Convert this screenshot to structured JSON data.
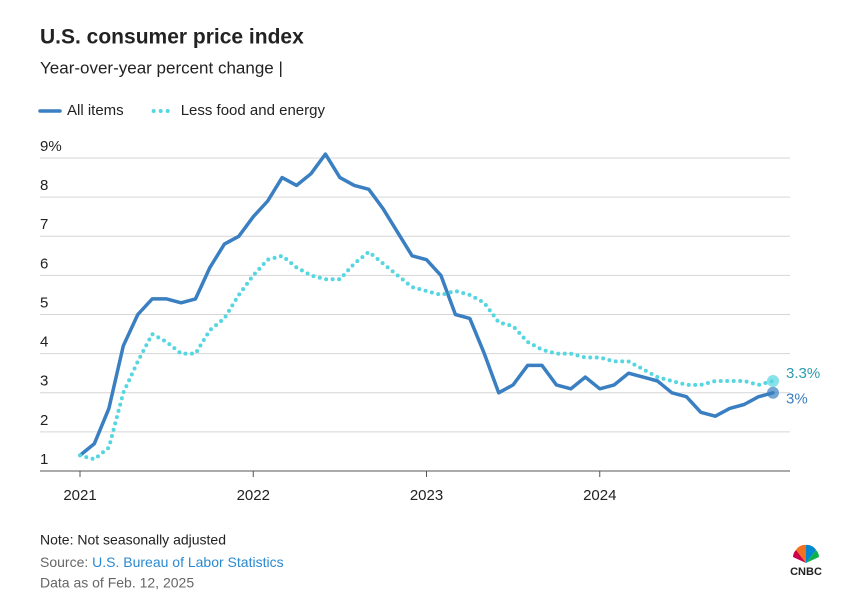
{
  "chart_data": {
    "type": "line",
    "title": "U.S. consumer price index",
    "subtitle": "Year-over-year percent change |",
    "categories": [
      "2021",
      null,
      null,
      null,
      null,
      null,
      null,
      null,
      null,
      null,
      null,
      null,
      "2022",
      null,
      null,
      null,
      null,
      null,
      null,
      null,
      null,
      null,
      null,
      null,
      "2023",
      null,
      null,
      null,
      null,
      null,
      null,
      null,
      null,
      null,
      null,
      null,
      "2024",
      null,
      null,
      null,
      null,
      null,
      null,
      null,
      null,
      null,
      null,
      null,
      null
    ],
    "series": [
      {
        "name": "All items",
        "color": "#3a7fc1",
        "style": "solid",
        "values": [
          1.4,
          1.7,
          2.6,
          4.2,
          5.0,
          5.4,
          5.4,
          5.3,
          5.4,
          6.2,
          6.8,
          7.0,
          7.5,
          7.9,
          8.5,
          8.3,
          8.6,
          9.1,
          8.5,
          8.3,
          8.2,
          7.7,
          7.1,
          6.5,
          6.4,
          6.0,
          5.0,
          4.9,
          4.0,
          3.0,
          3.2,
          3.7,
          3.7,
          3.2,
          3.1,
          3.4,
          3.1,
          3.2,
          3.5,
          3.4,
          3.3,
          3.0,
          2.9,
          2.5,
          2.4,
          2.6,
          2.7,
          2.9,
          3.0
        ],
        "value_labels": [
          null,
          null,
          null,
          null,
          null,
          null,
          null,
          null,
          null,
          null,
          null,
          null,
          null,
          null,
          null,
          null,
          null,
          null,
          null,
          null,
          null,
          null,
          null,
          null,
          null,
          null,
          null,
          null,
          null,
          null,
          null,
          null,
          null,
          null,
          null,
          null,
          null,
          null,
          null,
          null,
          null,
          null,
          null,
          null,
          null,
          null,
          null,
          null,
          "3%"
        ]
      },
      {
        "name": "Less food and energy",
        "color": "#55d6e0",
        "style": "dotted",
        "values": [
          1.4,
          1.3,
          1.6,
          3.0,
          3.8,
          4.5,
          4.3,
          4.0,
          4.0,
          4.6,
          4.9,
          5.5,
          6.0,
          6.4,
          6.5,
          6.2,
          6.0,
          5.9,
          5.9,
          6.3,
          6.6,
          6.3,
          6.0,
          5.7,
          5.6,
          5.5,
          5.6,
          5.5,
          5.3,
          4.8,
          4.7,
          4.3,
          4.1,
          4.0,
          4.0,
          3.9,
          3.9,
          3.8,
          3.8,
          3.6,
          3.4,
          3.3,
          3.2,
          3.2,
          3.3,
          3.3,
          3.3,
          3.2,
          3.3
        ],
        "value_labels": [
          null,
          null,
          null,
          null,
          null,
          null,
          null,
          null,
          null,
          null,
          null,
          null,
          null,
          null,
          null,
          null,
          null,
          null,
          null,
          null,
          null,
          null,
          null,
          null,
          null,
          null,
          null,
          null,
          null,
          null,
          null,
          null,
          null,
          null,
          null,
          null,
          null,
          null,
          null,
          null,
          null,
          null,
          null,
          null,
          null,
          null,
          null,
          null,
          "3.3%"
        ]
      }
    ],
    "ylim": [
      1,
      9
    ],
    "yticks": [
      1,
      2,
      3,
      4,
      5,
      6,
      7,
      8,
      {
        "value": 9,
        "label": "9%"
      }
    ],
    "grid": true,
    "legend": "top-left"
  },
  "footer": {
    "note": "Note: Not seasonally adjusted",
    "source_label": "Source:",
    "source": "U.S. Bureau of Labor Statistics",
    "data_as_of": "Data as of Feb. 12, 2025",
    "logo": "CNBC"
  }
}
